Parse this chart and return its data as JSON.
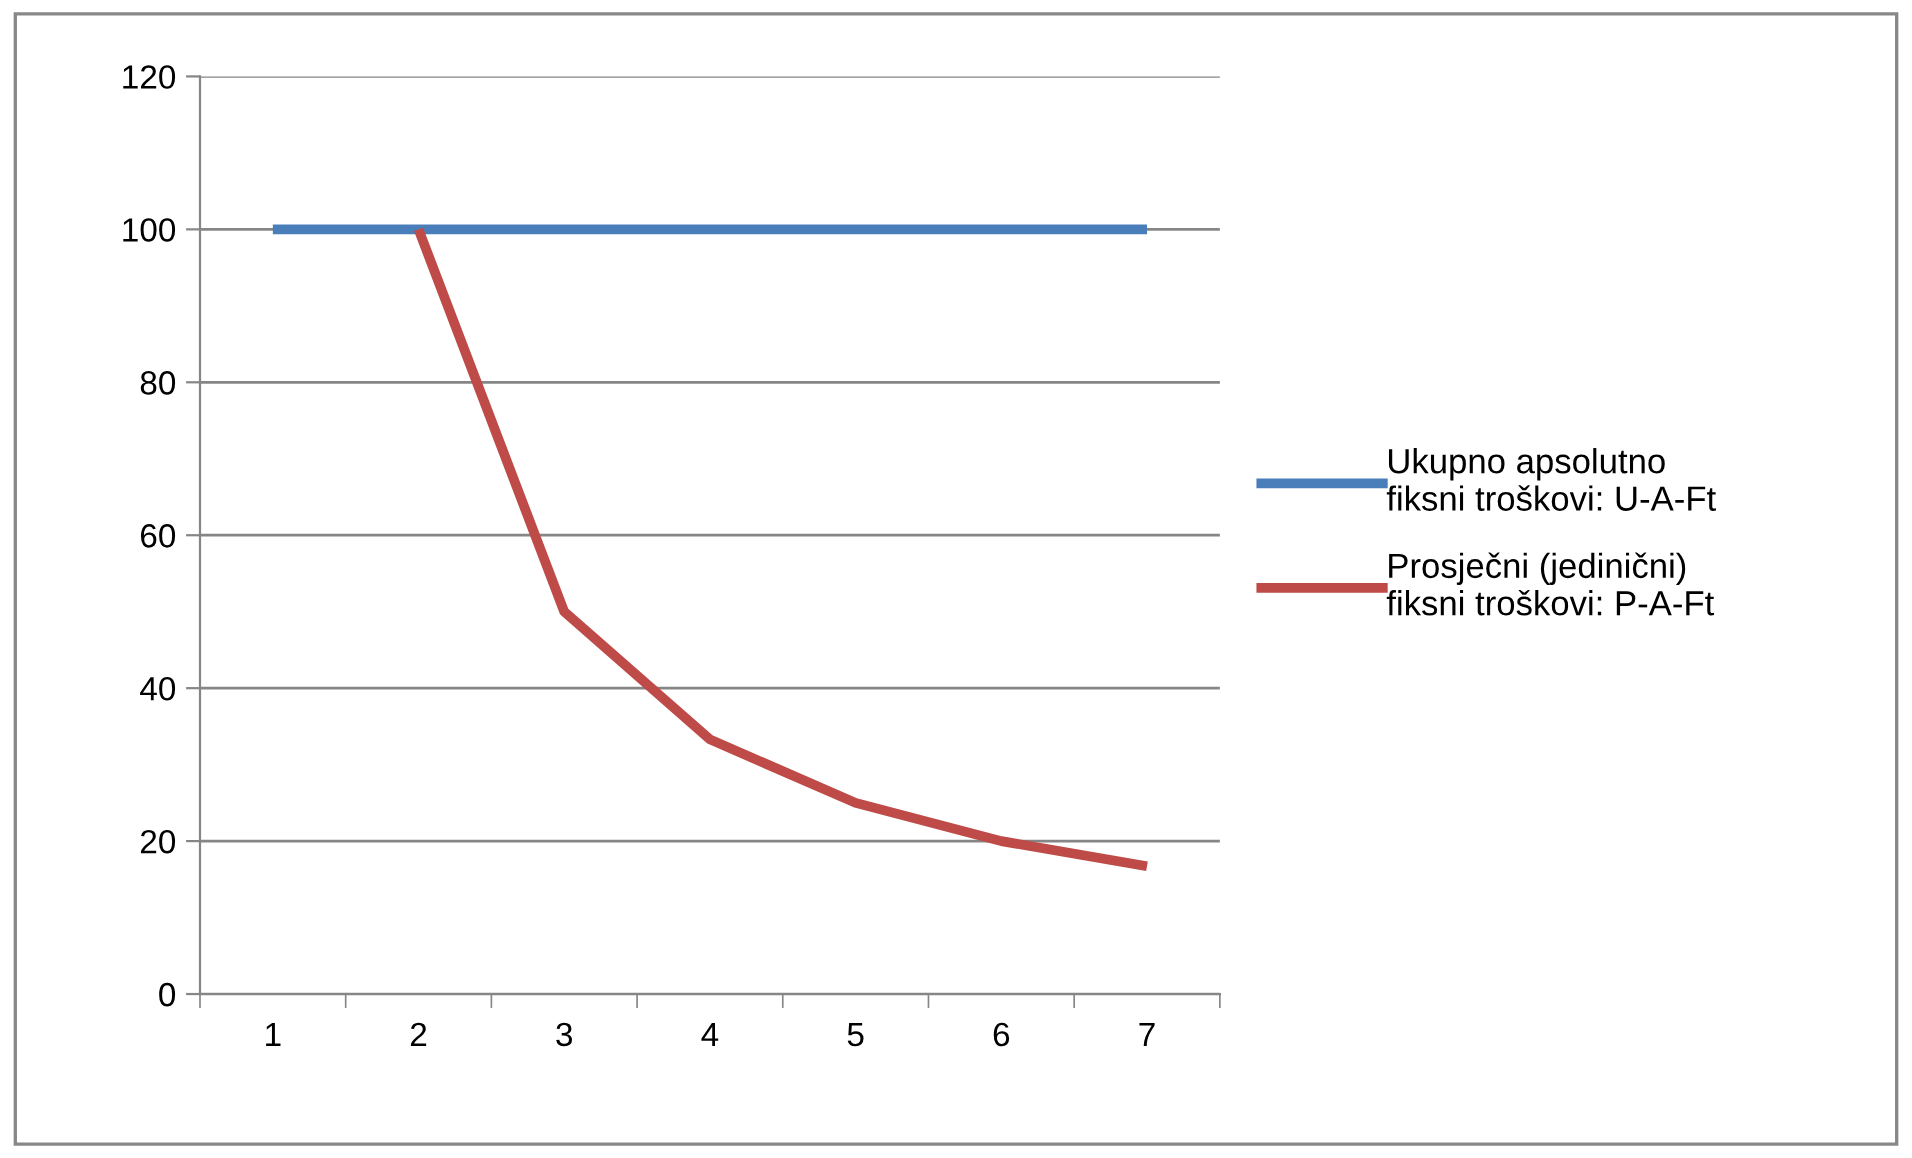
{
  "chart_data": {
    "type": "line",
    "categories": [
      "1",
      "2",
      "3",
      "4",
      "5",
      "6",
      "7"
    ],
    "series": [
      {
        "name": "Ukupno apsolutno\nfiksni troškovi: U-A-Ft",
        "color": "#4a7ebb",
        "values": [
          100,
          100,
          100,
          100,
          100,
          100,
          100
        ]
      },
      {
        "name": "Prosječni (jedinični)\nfiksni troškovi: P-A-Ft",
        "color": "#be4b48",
        "values": [
          null,
          100,
          50,
          33.3,
          25,
          20,
          16.7
        ]
      }
    ],
    "ylim": [
      0,
      120
    ],
    "yticks": [
      0,
      20,
      40,
      60,
      80,
      100,
      120
    ],
    "grid": "y",
    "legend": "right",
    "marker": "none",
    "line_style": "solid"
  }
}
